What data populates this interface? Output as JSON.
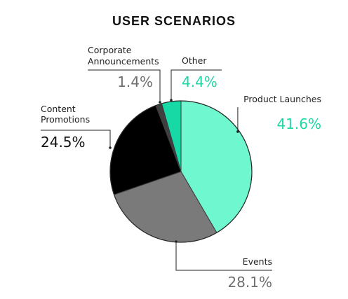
{
  "chart_data": {
    "type": "pie",
    "title": "USER SCENARIOS",
    "slices": [
      {
        "label": "Product Launches",
        "value": 41.6,
        "value_label": "41.6%",
        "color": "#6ff7cf"
      },
      {
        "label": "Events",
        "value": 28.1,
        "value_label": "28.1%",
        "color": "#7a7a7a"
      },
      {
        "label": "Content Promotions",
        "value": 24.5,
        "value_label": "24.5%",
        "color": "#000000"
      },
      {
        "label": "Corporate Announcements",
        "value": 1.4,
        "value_label": "1.4%",
        "color": "#3f3f3f"
      },
      {
        "label": "Other",
        "value": 4.4,
        "value_label": "4.4%",
        "color": "#16d9a6"
      }
    ]
  },
  "colors": {
    "teal_text": "#1ed8a6",
    "gray_text": "#6f6f6f",
    "dark_text": "#111111",
    "leader": "#222222"
  }
}
